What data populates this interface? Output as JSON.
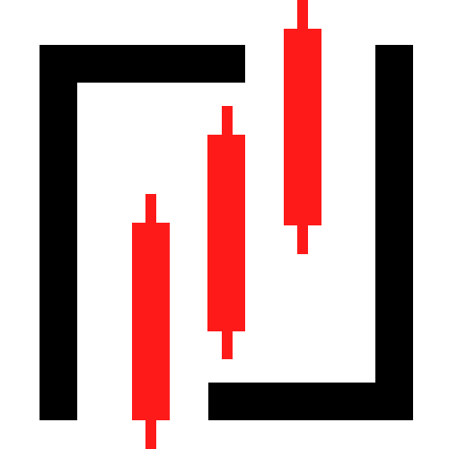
{
  "logo": {
    "icon": "candlestick-chart-logo-icon",
    "colors": {
      "background": "#ffffff",
      "frame": "#000000",
      "candle": "#ff1a1a"
    }
  }
}
